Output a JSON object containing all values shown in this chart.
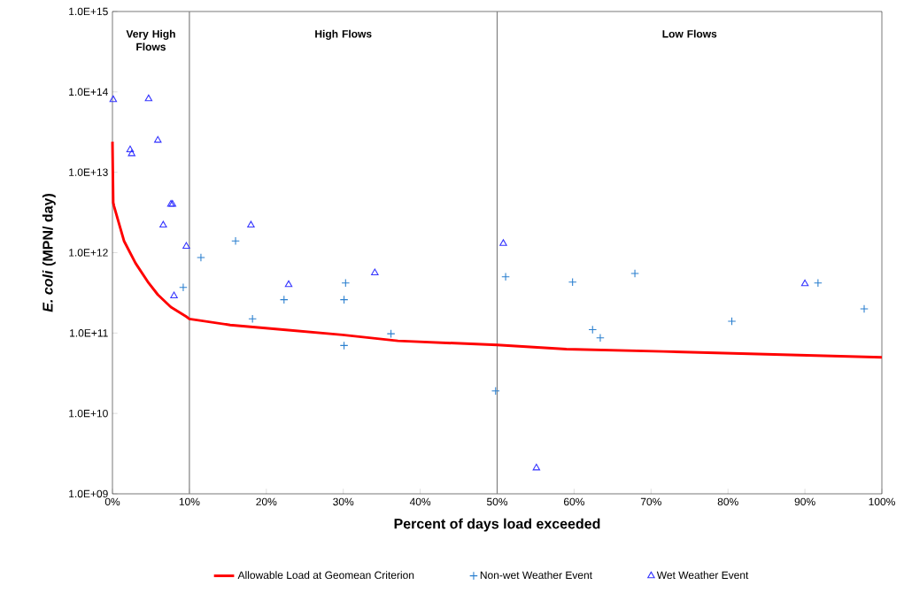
{
  "chart_data": {
    "type": "scatter",
    "xlabel": "Percent of days load exceeded",
    "ylabel": "*E. coli* (MPN/ day)",
    "log": "y",
    "xlim": [
      0,
      100
    ],
    "xticks": [
      {
        "value": 0,
        "label": "0%"
      },
      {
        "value": 10,
        "label": "10%"
      },
      {
        "value": 20,
        "label": "20%"
      },
      {
        "value": 30,
        "label": "30%"
      },
      {
        "value": 40,
        "label": "40%"
      },
      {
        "value": 50,
        "label": "50%"
      },
      {
        "value": 60,
        "label": "60%"
      },
      {
        "value": 70,
        "label": "70%"
      },
      {
        "value": 80,
        "label": "80%"
      },
      {
        "value": 90,
        "label": "90%"
      },
      {
        "value": 100,
        "label": "100%"
      }
    ],
    "ylim": [
      1000000000.0,
      1000000000000000.0
    ],
    "yticks": [
      {
        "value": 1000000000.0,
        "label": "1.0E+09"
      },
      {
        "value": 10000000000.0,
        "label": "1.0E+10"
      },
      {
        "value": 100000000000.0,
        "label": "1.0E+11"
      },
      {
        "value": 1000000000000.0,
        "label": "1.0E+12"
      },
      {
        "value": 10000000000000.0,
        "label": "1.0E+13"
      },
      {
        "value": 100000000000000.0,
        "label": "1.0E+14"
      },
      {
        "value": 1000000000000000.0,
        "label": "1.0E+15"
      }
    ],
    "grid": false,
    "legend": "bottom",
    "ref_lines": [
      {
        "axis": "x",
        "value": 10,
        "color": "#808080"
      },
      {
        "axis": "x",
        "value": 50,
        "color": "#808080"
      }
    ],
    "annotations": [
      "Very High Flows",
      "High Flows",
      "Low Flows"
    ],
    "series": [
      {
        "name": "Allowable Load at Geomean Criterion",
        "type": "line",
        "color": "#ff0000",
        "marker": "none",
        "line_style": "solid",
        "x": [
          0,
          0.1,
          0.2,
          1.5,
          3,
          4.7,
          5.9,
          7.6,
          9.6,
          10,
          15.3,
          22.2,
          29.9,
          37.1,
          50,
          59,
          71.6,
          100
        ],
        "values": [
          24000000000000.0,
          4200000000000.0,
          3800000000000.0,
          1400000000000.0,
          740000000000.0,
          420000000000.0,
          300000000000.0,
          210000000000.0,
          160000000000.0,
          150000000000.0,
          126000000000.0,
          110000000000.0,
          95000000000.0,
          80000000000.0,
          71000000000.0,
          63000000000.0,
          59000000000.0,
          50000000000.0
        ]
      },
      {
        "name": "Non-wet Weather Event",
        "color": "#2a7fcf",
        "marker": "cross",
        "x": [
          9.2,
          11.5,
          16.0,
          22.3,
          18.2,
          30.1,
          30.3,
          30.1,
          36.2,
          49.8,
          51.1,
          59.8,
          62.4,
          63.4,
          67.9,
          80.5,
          91.7,
          97.7
        ],
        "values": [
          370000000000.0,
          870000000000.0,
          1400000000000.0,
          260000000000.0,
          150000000000.0,
          260000000000.0,
          420000000000.0,
          70000000000.0,
          98000000000.0,
          19000000000.0,
          500000000000.0,
          430000000000.0,
          110000000000.0,
          87000000000.0,
          550000000000.0,
          140000000000.0,
          420000000000.0,
          200000000000.0
        ]
      },
      {
        "name": "Wet Weather Event",
        "color": "#3333ff",
        "marker": "triangle",
        "x": [
          0.1,
          4.7,
          2.3,
          2.5,
          5.9,
          7.6,
          7.8,
          6.6,
          9.6,
          8.0,
          18.0,
          22.9,
          34.1,
          50.8,
          55.1,
          90.0
        ],
        "values": [
          80000000000000.0,
          82000000000000.0,
          19000000000000.0,
          17000000000000.0,
          25000000000000.0,
          4000000000000.0,
          4000000000000.0,
          2200000000000.0,
          1200000000000.0,
          290000000000.0,
          2200000000000.0,
          400000000000.0,
          560000000000.0,
          1300000000000.0,
          2100000000.0,
          410000000000.0
        ]
      }
    ]
  }
}
